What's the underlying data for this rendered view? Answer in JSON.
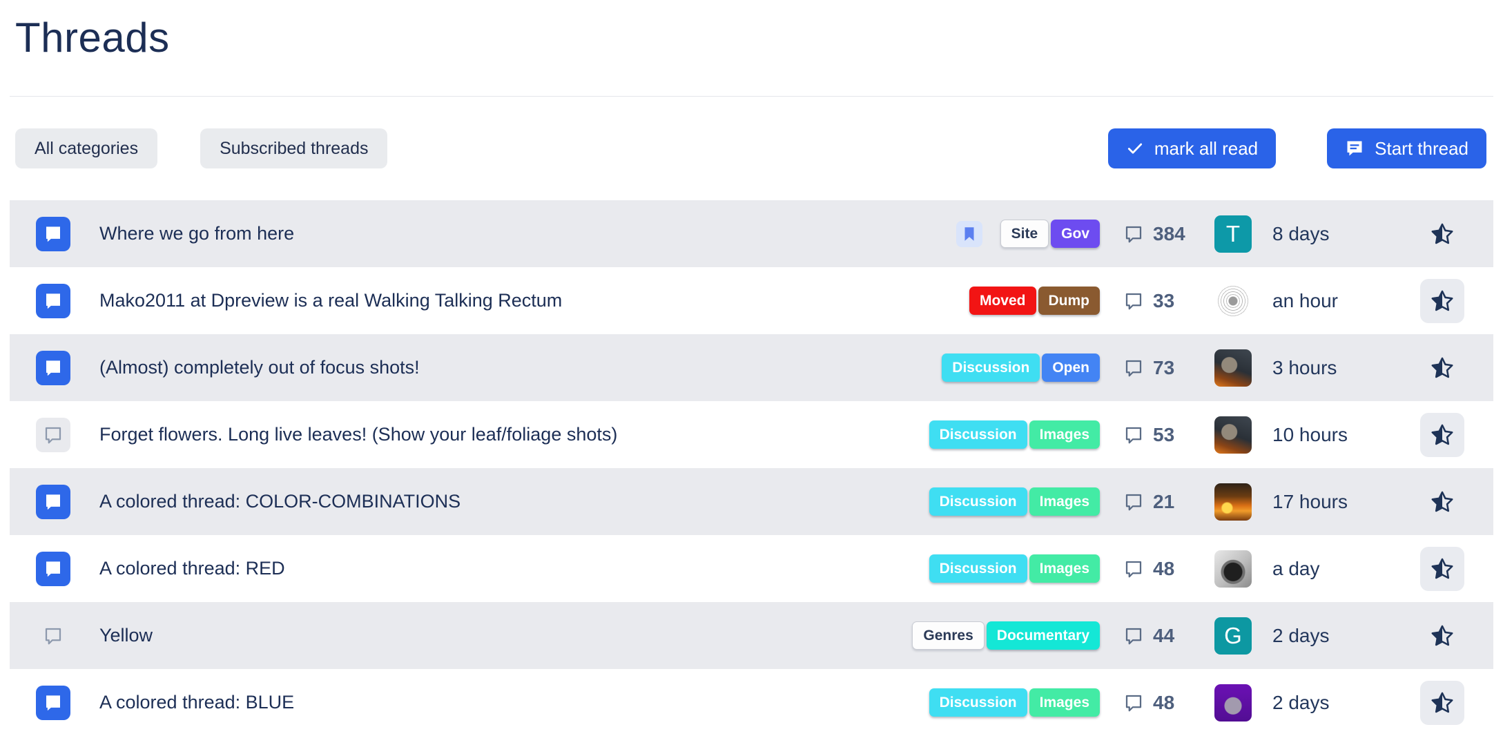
{
  "page": {
    "title": "Threads"
  },
  "toolbar": {
    "filters": [
      {
        "label": "All categories"
      },
      {
        "label": "Subscribed threads"
      }
    ],
    "actions": [
      {
        "label": "mark all read",
        "icon": "check-icon"
      },
      {
        "label": "Start thread",
        "icon": "chat-bubble-icon"
      }
    ]
  },
  "colors": {
    "accent_blue": "#2a63e8",
    "unread_icon_blue": "#2e68e9",
    "row_alt_gray": "#e9eaee",
    "tag_discussion_cyan": "#3fdef2",
    "tag_open_blue": "#4384f4",
    "tag_images_green": "#43eba5",
    "tag_gov_purple": "#6d4cf0",
    "tag_moved_red": "#f21414",
    "tag_dump_brown": "#8a5a30",
    "tag_documentary_teal": "#14e7d6",
    "star_navy": "#1e3357",
    "bookmark_blue": "#5b7ff0"
  },
  "threads": [
    {
      "title": "Where we go from here",
      "unread": true,
      "bookmarked": true,
      "tags": [
        {
          "label": "Site",
          "style": "neutral"
        },
        {
          "label": "Gov",
          "color": "#6d4cf0"
        }
      ],
      "comments": "384",
      "time": "8 days",
      "avatar": {
        "type": "initial",
        "text": "T",
        "shape": "rounded",
        "bg": "#0d99a8"
      }
    },
    {
      "title": "Mako2011 at Dpreview is a real Walking Talking Rectum",
      "unread": true,
      "bookmarked": false,
      "tags": [
        {
          "label": "Moved",
          "color": "#f21414"
        },
        {
          "label": "Dump",
          "color": "#8a5a30"
        }
      ],
      "comments": "33",
      "time": "an hour",
      "avatar": {
        "type": "photo",
        "text": "",
        "shape": "circle",
        "bg": "radial-gradient(circle at 50% 50%, #9a9a9a 0 6px, #ffffff 7px 9px, #c2c2c2 9px 10px, #ffffff 10px 13px, #b8b8b8 13px 14px, #ffffff 14px 17px, #c0c0c0 17px 18px, #ffffff 18px 21px, #cacaca 21px 22px, #ffffff 22px 28px)"
      }
    },
    {
      "title": "(Almost) completely out of focus shots!",
      "unread": true,
      "bookmarked": false,
      "tags": [
        {
          "label": "Discussion",
          "color": "#3fdef2"
        },
        {
          "label": "Open",
          "color": "#4384f4"
        }
      ],
      "comments": "73",
      "time": "3 hours",
      "avatar": {
        "type": "photo",
        "text": "",
        "shape": "rounded",
        "bg": "radial-gradient(circle at 40% 42%, #93897b 0 11px, rgba(0,0,0,0) 12px), linear-gradient(200deg, #3f4750 0%, #2a3037 50%, #8a4416 78%, #e27a1c 100%)"
      }
    },
    {
      "title": "Forget flowers. Long live leaves! (Show your leaf/foliage shots)",
      "unread": false,
      "bookmarked": false,
      "tags": [
        {
          "label": "Discussion",
          "color": "#3fdef2"
        },
        {
          "label": "Images",
          "color": "#43eba5"
        }
      ],
      "comments": "53",
      "time": "10 hours",
      "avatar": {
        "type": "photo",
        "text": "",
        "shape": "rounded",
        "bg": "radial-gradient(circle at 40% 42%, #93897b 0 11px, rgba(0,0,0,0) 12px), linear-gradient(200deg, #3f4750 0%, #2a3037 50%, #8a4416 78%, #e27a1c 100%)"
      }
    },
    {
      "title": "A colored thread: COLOR-COMBINATIONS",
      "unread": true,
      "bookmarked": false,
      "tags": [
        {
          "label": "Discussion",
          "color": "#3fdef2"
        },
        {
          "label": "Images",
          "color": "#43eba5"
        }
      ],
      "comments": "21",
      "time": "17 hours",
      "avatar": {
        "type": "photo",
        "text": "",
        "shape": "rounded",
        "bg": "radial-gradient(circle at 34% 66%, #ffd84d 0 7px, rgba(0,0,0,0) 9px), linear-gradient(180deg, #2e2318 0%, #6b3c12 35%, #d96f15 60%, #f29c2a 74%, #7a3c10 100%)"
      }
    },
    {
      "title": "A colored thread: RED",
      "unread": true,
      "bookmarked": false,
      "tags": [
        {
          "label": "Discussion",
          "color": "#3fdef2"
        },
        {
          "label": "Images",
          "color": "#43eba5"
        }
      ],
      "comments": "48",
      "time": "a day",
      "avatar": {
        "type": "photo",
        "text": "",
        "shape": "rounded",
        "bg": "radial-gradient(circle at 50% 58%, #1f1f1f 0 13px, #6f6f6f 14px 17px, rgba(0,0,0,0) 18px), linear-gradient(135deg, #e8e8e8 0%, #bdbdbd 55%, #8c8c8c 100%)"
      }
    },
    {
      "title": "Yellow",
      "unread": false,
      "bookmarked": false,
      "tags": [
        {
          "label": "Genres",
          "style": "neutral"
        },
        {
          "label": "Documentary",
          "color": "#14e7d6"
        }
      ],
      "comments": "44",
      "time": "2 days",
      "avatar": {
        "type": "initial",
        "text": "G",
        "shape": "rounded",
        "bg": "#0d98a2"
      }
    },
    {
      "title": "A colored thread: BLUE",
      "unread": true,
      "bookmarked": false,
      "tags": [
        {
          "label": "Discussion",
          "color": "#3fdef2"
        },
        {
          "label": "Images",
          "color": "#43eba5"
        }
      ],
      "comments": "48",
      "time": "2 days",
      "avatar": {
        "type": "photo",
        "text": "",
        "shape": "rounded",
        "bg": "radial-gradient(circle at 50% 58%, #a29aae 0 12px, rgba(0,0,0,0) 13px), linear-gradient(180deg, #6b11b4 0%, #520d93 100%)"
      }
    }
  ]
}
